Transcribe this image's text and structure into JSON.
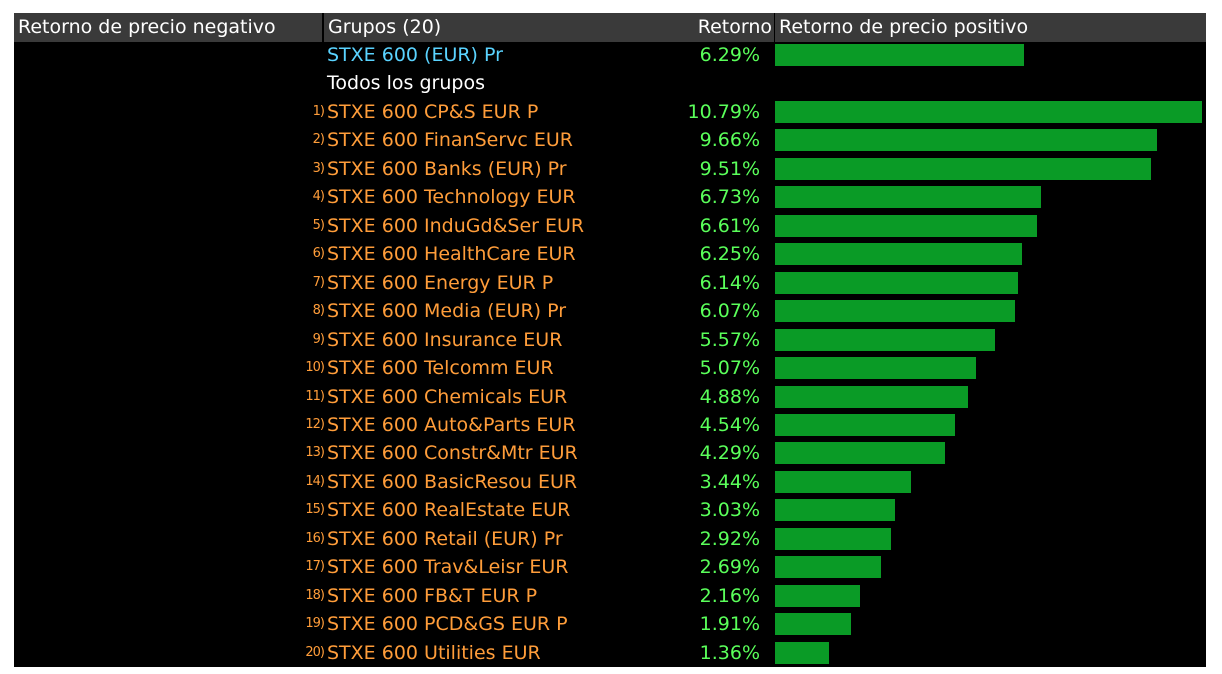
{
  "header": {
    "negative_label": "Retorno de precio negativo",
    "groups_label": "Grupos (20)",
    "return_label": "Retorno",
    "positive_label": "Retorno de precio positivo"
  },
  "index_row": {
    "name": "STXE 600 (EUR) Pr",
    "return_text": "6.29%",
    "value": 6.29
  },
  "section_label": "Todos los grupos",
  "max_value": 10.79,
  "colors": {
    "background": "#000000",
    "header_bg": "#3a3a3a",
    "group_name": "#ff9d3a",
    "index_name": "#5ad3ff",
    "return_text": "#5aff5a",
    "bar": "#0a9b26"
  },
  "groups": [
    {
      "num": "1)",
      "name": "STXE 600 CP&S EUR P",
      "return_text": "10.79%",
      "value": 10.79
    },
    {
      "num": "2)",
      "name": "STXE 600 FinanServc EUR",
      "return_text": "9.66%",
      "value": 9.66
    },
    {
      "num": "3)",
      "name": "STXE 600 Banks (EUR) Pr",
      "return_text": "9.51%",
      "value": 9.51
    },
    {
      "num": "4)",
      "name": "STXE 600 Technology EUR",
      "return_text": "6.73%",
      "value": 6.73
    },
    {
      "num": "5)",
      "name": "STXE 600 InduGd&Ser EUR",
      "return_text": "6.61%",
      "value": 6.61
    },
    {
      "num": "6)",
      "name": "STXE 600 HealthCare EUR",
      "return_text": "6.25%",
      "value": 6.25
    },
    {
      "num": "7)",
      "name": "STXE 600 Energy EUR P",
      "return_text": "6.14%",
      "value": 6.14
    },
    {
      "num": "8)",
      "name": "STXE 600 Media (EUR) Pr",
      "return_text": "6.07%",
      "value": 6.07
    },
    {
      "num": "9)",
      "name": "STXE 600 Insurance EUR",
      "return_text": "5.57%",
      "value": 5.57
    },
    {
      "num": "10)",
      "name": "STXE 600 Telcomm EUR",
      "return_text": "5.07%",
      "value": 5.07
    },
    {
      "num": "11)",
      "name": "STXE 600 Chemicals EUR",
      "return_text": "4.88%",
      "value": 4.88
    },
    {
      "num": "12)",
      "name": "STXE 600 Auto&Parts EUR",
      "return_text": "4.54%",
      "value": 4.54
    },
    {
      "num": "13)",
      "name": "STXE 600 Constr&Mtr EUR",
      "return_text": "4.29%",
      "value": 4.29
    },
    {
      "num": "14)",
      "name": "STXE 600 BasicResou EUR",
      "return_text": "3.44%",
      "value": 3.44
    },
    {
      "num": "15)",
      "name": "STXE 600 RealEstate EUR",
      "return_text": "3.03%",
      "value": 3.03
    },
    {
      "num": "16)",
      "name": "STXE 600 Retail (EUR) Pr",
      "return_text": "2.92%",
      "value": 2.92
    },
    {
      "num": "17)",
      "name": "STXE 600 Trav&Leisr EUR",
      "return_text": "2.69%",
      "value": 2.69
    },
    {
      "num": "18)",
      "name": "STXE 600 FB&T EUR P",
      "return_text": "2.16%",
      "value": 2.16
    },
    {
      "num": "19)",
      "name": "STXE 600 PCD&GS EUR P",
      "return_text": "1.91%",
      "value": 1.91
    },
    {
      "num": "20)",
      "name": "STXE 600 Utilities EUR",
      "return_text": "1.36%",
      "value": 1.36
    }
  ]
}
